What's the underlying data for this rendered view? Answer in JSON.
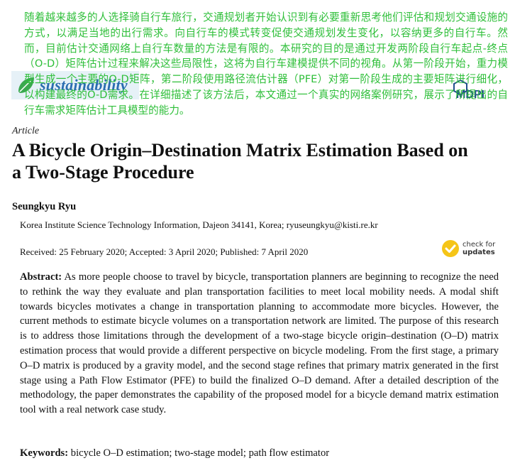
{
  "journal": {
    "name": "sustainability",
    "publisher": "MDPI"
  },
  "translation_overlay": "随着越来越多的人选择骑自行车旅行，交通规划者开始认识到有必要重新思考他们评估和规划交通设施的方式，以满足当地的出行需求。向自行车的模式转变促使交通规划发生变化，以容纳更多的自行车。然而，目前估计交通网络上自行车数量的方法是有限的。本研究的目的是通过开发两阶段自行车起点-终点（O-D）矩阵估计过程来解决这些局限性，这将为自行车建模提供不同的视角。从第一阶段开始，重力模型生成一个主要的O-D矩阵，第二阶段使用路径流估计器（PFE）对第一阶段生成的主要矩阵进行细化，以构建最终的O-D需求。在详细描述了该方法后，本文通过一个真实的网络案例研究，展示了所提出的自行车需求矩阵估计工具模型的能力。",
  "article": {
    "type": "Article",
    "title": "A Bicycle Origin–Destination Matrix Estimation Based on a Two-Stage Procedure",
    "author": "Seungkyu Ryu",
    "affiliation": "Korea Institute Science Technology Information, Dajeon 34141, Korea; ryuseungkyu@kisti.re.kr",
    "dates": "Received: 25 February 2020; Accepted: 3 April 2020; Published: 7 April 2020",
    "check_updates": {
      "line1": "check for",
      "line2": "updates"
    },
    "abstract_label": "Abstract:",
    "abstract_text": "As more people choose to travel by bicycle, transportation planners are beginning to recognize the need to rethink the way they evaluate and plan transportation facilities to meet local mobility needs. A modal shift towards bicycles motivates a change in transportation planning to accommodate more bicycles. However, the current methods to estimate bicycle volumes on a transportation network are limited. The purpose of this research is to address those limitations through the development of a two-stage bicycle origin–destination (O–D) matrix estimation process that would provide a different perspective on bicycle modeling. From the first stage, a primary O–D matrix is produced by a gravity model, and the second stage refines that primary matrix generated in the first stage using a Path Flow Estimator (PFE) to build the finalized O–D demand. After a detailed description of the methodology, the paper demonstrates the capability of the proposed model for a bicycle demand matrix estimation tool with a real network case study.",
    "keywords_label": "Keywords:",
    "keywords_text": "bicycle O–D estimation; two-stage model; path flow estimator"
  },
  "colors": {
    "overlay_text": "#2fbf3a",
    "journal_blue": "#2a6db0",
    "journal_band": "#e6f1f7",
    "mdpi_blue": "#1f4e8c",
    "update_badge": "#f5c518"
  }
}
